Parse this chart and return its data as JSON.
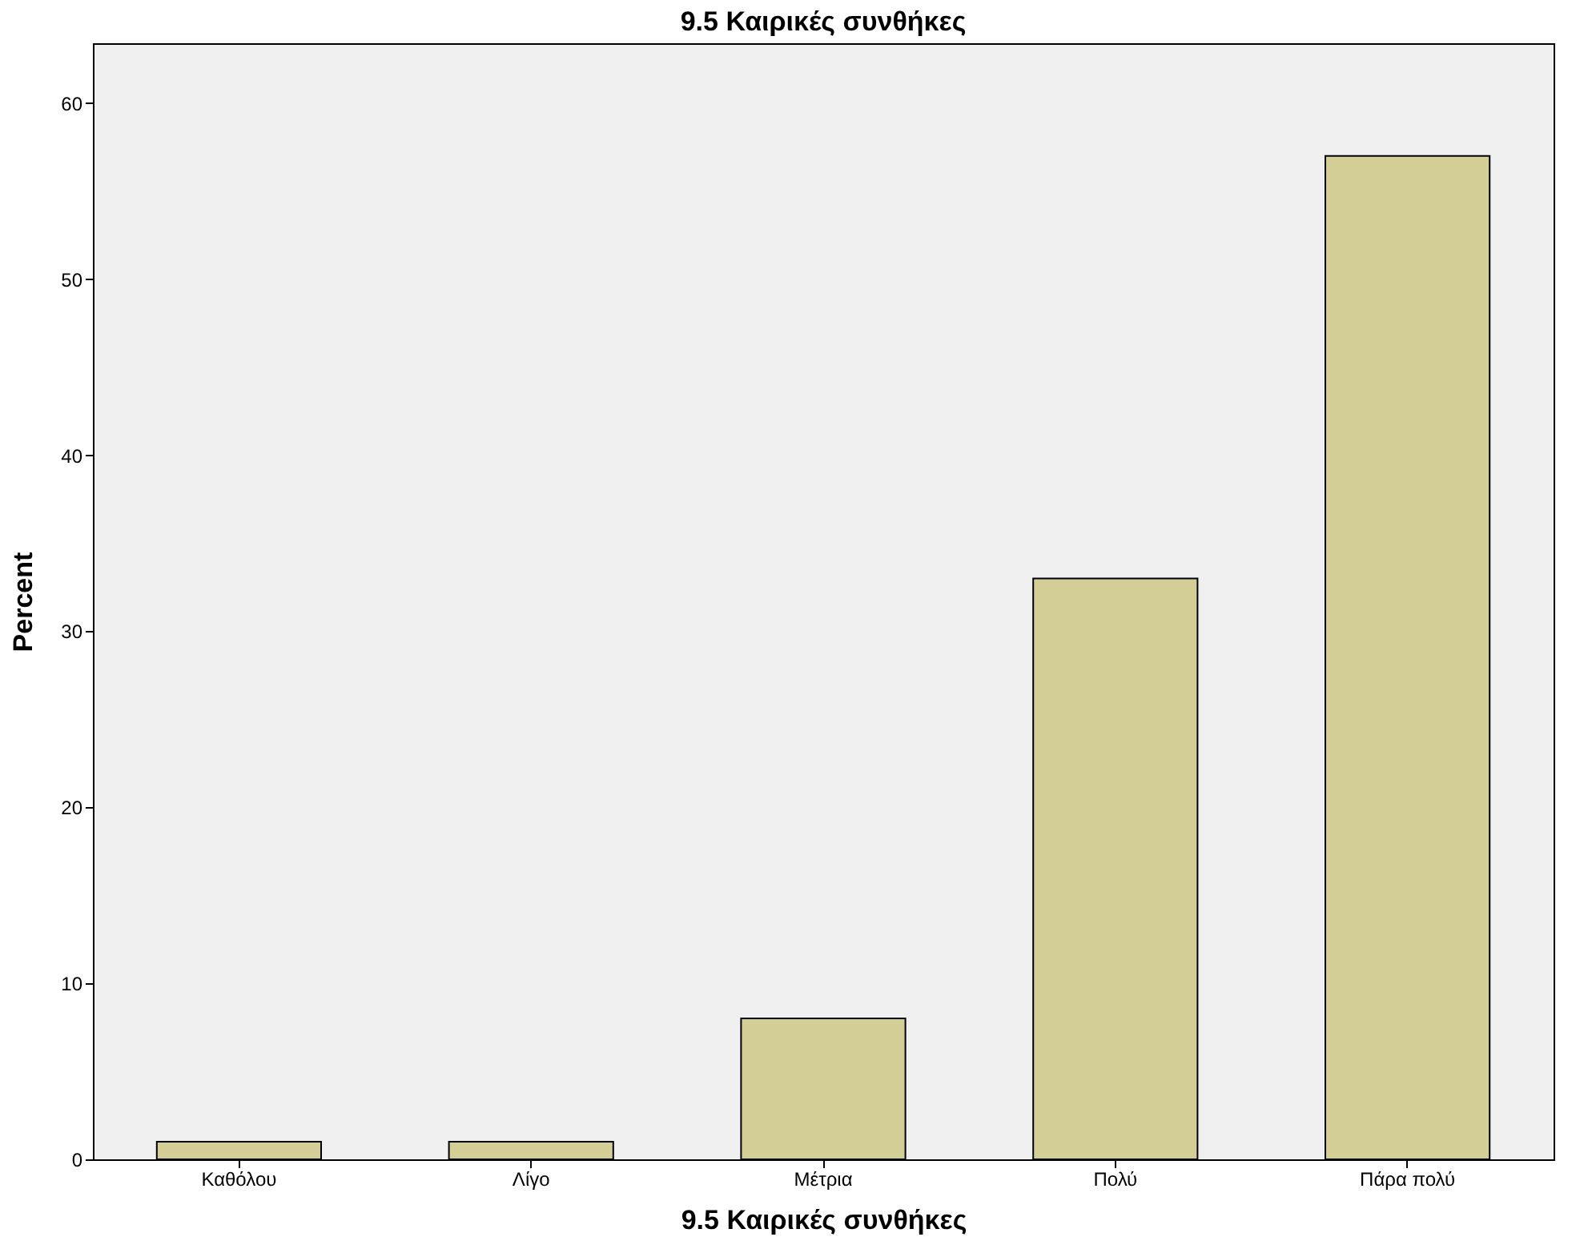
{
  "chart_data": {
    "type": "bar",
    "title": "9.5 Καιρικές συνθήκες",
    "xlabel": "9.5 Καιρικές συνθήκες",
    "ylabel": "Percent",
    "categories": [
      "Καθόλου",
      "Λίγο",
      "Μέτρια",
      "Πολύ",
      "Πάρα πολύ"
    ],
    "values": [
      1,
      1,
      8,
      33,
      57
    ],
    "color": "#d3ce96",
    "ylim": [
      0,
      63.4
    ],
    "yticks": [
      0,
      10,
      20,
      30,
      40,
      50,
      60
    ],
    "grid": false
  }
}
